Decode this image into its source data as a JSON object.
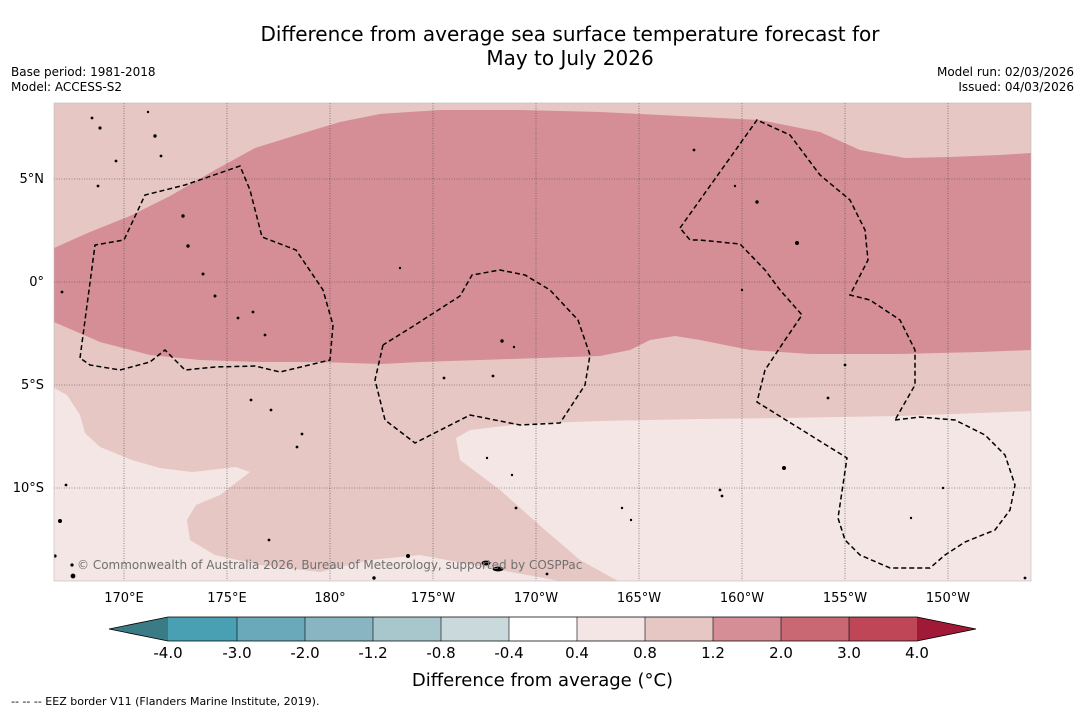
{
  "header": {
    "title_line1": "Difference from average sea surface temperature forecast for",
    "title_line2": "May to July 2026",
    "base_period": "Base period: 1981-2018",
    "model": "Model: ACCESS-S2",
    "model_run": "Model run: 02/03/2026",
    "issued": "Issued: 04/03/2026"
  },
  "map": {
    "lat_labels": [
      "5°N",
      "0°",
      "5°S",
      "10°S"
    ],
    "lon_labels": [
      "170°E",
      "175°E",
      "180°",
      "175°W",
      "170°W",
      "165°W",
      "160°W",
      "155°W",
      "150°W"
    ],
    "copyright": "© Commonwealth of Australia 2026, Bureau of Meteorology, supported by COSPPac",
    "category_colors": {
      "0.4_to_0.8": "#f3e6e4",
      "0.8_to_1.2": "#e6c7c3",
      "1.2_to_2.0": "#d58e95"
    }
  },
  "colorbar": {
    "ticks": [
      "-4.0",
      "-3.0",
      "-2.0",
      "-1.2",
      "-0.8",
      "-0.4",
      "0.4",
      "0.8",
      "1.2",
      "2.0",
      "3.0",
      "4.0"
    ],
    "colors": [
      "#3a7b86",
      "#4aa0b3",
      "#6aa9b9",
      "#88b5c1",
      "#a8c7cc",
      "#c9d9dc",
      "#ffffff",
      "#f3e6e4",
      "#e6c7c3",
      "#d58e95",
      "#c96872",
      "#bf4657",
      "#a01a38"
    ],
    "label": "Difference from average (°C)"
  },
  "footnote": "--  --  -- EEZ border V11 (Flanders Marine Institute, 2019)."
}
